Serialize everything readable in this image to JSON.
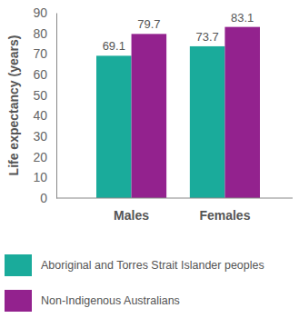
{
  "chart_data": {
    "type": "bar",
    "y_label": "Life expectancy (years)",
    "categories": [
      "Males",
      "Females"
    ],
    "series": [
      {
        "name": "Aboriginal and Torres Strait Islander peoples",
        "color": "#1aab9b",
        "values": [
          69.1,
          73.7
        ]
      },
      {
        "name": "Non-Indigenous Australians",
        "color": "#93228e",
        "values": [
          79.7,
          83.1
        ]
      }
    ],
    "ylim": [
      0,
      90
    ],
    "yticks": [
      0,
      10,
      20,
      30,
      40,
      50,
      60,
      70,
      80,
      90
    ],
    "grid": false,
    "data_labels": true,
    "legend": "bottom"
  }
}
